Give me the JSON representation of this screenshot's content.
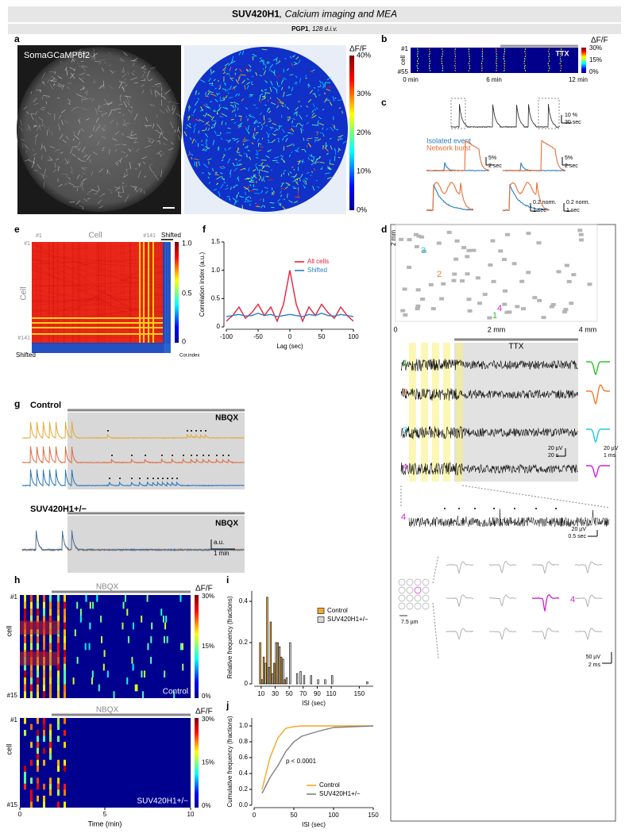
{
  "header": {
    "title_gene": "SUV420H1",
    "title_rest": ", Calcium imaging and MEA",
    "subtitle_line": "PGP1",
    "subtitle_rest": ", 128 d.i.v."
  },
  "panels": {
    "a": {
      "letter": "a",
      "image_label": "SomaGCaMP6f2",
      "colorbar_title": "ΔF/F",
      "colorbar_ticks": [
        "40%",
        "30%",
        "20%",
        "10%",
        "0%"
      ]
    },
    "b": {
      "letter": "b",
      "row_first": "#1",
      "row_axis": "cell",
      "row_last": "#55",
      "time_ticks": [
        "0 min",
        "6 min",
        "12 min"
      ],
      "treatment": "TTX",
      "colorbar_title": "ΔF/F",
      "colorbar_ticks": [
        "30%",
        "15%",
        "0%"
      ]
    },
    "c": {
      "letter": "c",
      "top_scale": [
        "10 %",
        "30 sec"
      ],
      "legend": [
        "Isolated event",
        "Network burst"
      ],
      "scales": [
        "5%",
        "2 sec",
        "5%",
        "2 sec",
        "0.2 norm.",
        "1 sec",
        "0.2 norm.",
        "1 sec"
      ]
    },
    "d": {
      "letter": "d",
      "y_scale": "2 mm",
      "x_ticks": [
        "0",
        "2 mm",
        "4 mm"
      ],
      "electrodes": [
        "1",
        "2",
        "3",
        "4"
      ],
      "treatment": "TTX",
      "channels": [
        "1",
        "2",
        "3",
        "4"
      ],
      "trace_scale": [
        "20 µV",
        "20 s"
      ],
      "spike_scale": [
        "20 µV",
        "1 ms"
      ],
      "zoom_channel": "4",
      "zoom_scale": [
        "20 µV",
        "0.5 sec"
      ],
      "pitch": "7.5 µm",
      "unit_label": "4",
      "unit_scale": [
        "50 µV",
        "2 ms"
      ]
    },
    "e": {
      "letter": "e",
      "col_title": "Cell",
      "col_first": "#1",
      "col_last": "#141",
      "shifted_col": "Shifted",
      "row_title": "Cell",
      "row_first": "#1",
      "row_last": "#141",
      "shifted_row": "Shifted",
      "colorbar_ticks": [
        "1.0",
        "0.5",
        "0"
      ],
      "colorbar_title": "Cor.index"
    },
    "g": {
      "letter": "g",
      "control": "Control",
      "drug": "NBQX",
      "mutant": "SUV420H1+/−",
      "drug2": "NBQX",
      "scale": [
        "a.u.",
        "1 min"
      ]
    },
    "h": {
      "letter": "h",
      "control": {
        "drug": "NBQX",
        "colorbar_title": "ΔF/F",
        "colorbar_ticks": [
          "30%",
          "15%",
          "0%"
        ],
        "row_first": "#1",
        "row_axis": "cell",
        "row_last": "#15",
        "group": "Control"
      },
      "mutant": {
        "drug": "NBQX",
        "colorbar_title": "ΔF/F",
        "colorbar_ticks": [
          "30%",
          "15%",
          "0%"
        ],
        "row_first": "#1",
        "row_axis": "cell",
        "row_last": "#15",
        "group": "SUV420H1+/−"
      },
      "time_ticks": [
        "0",
        "5",
        "10"
      ],
      "time_label": "Time (min)"
    }
  },
  "chart_data": [
    {
      "panel": "f",
      "type": "line",
      "x_label": "Lag (sec)",
      "y_label": "Correlation index (a.u.)",
      "x": [
        -100,
        -90,
        -80,
        -70,
        -60,
        -50,
        -40,
        -30,
        -20,
        -10,
        0,
        10,
        20,
        30,
        40,
        50,
        60,
        70,
        80,
        90,
        100
      ],
      "xlim": [
        -100,
        100
      ],
      "xticks": [
        -100,
        -50,
        0,
        50,
        100
      ],
      "ylim": [
        0,
        1.5
      ],
      "yticks": [
        0,
        0.5,
        {
          "value": 1,
          "label": "1.0"
        },
        1.5
      ],
      "series": [
        {
          "name": "All cells",
          "color": "#e8203a",
          "values": [
            0.1,
            0.2,
            0.35,
            0.15,
            0.25,
            0.4,
            0.2,
            0.35,
            0.1,
            0.4,
            1.0,
            0.4,
            0.1,
            0.35,
            0.2,
            0.4,
            0.25,
            0.15,
            0.35,
            0.2,
            0.1
          ]
        },
        {
          "name": "Shifted",
          "color": "#2a7fc0",
          "values": [
            0.18,
            0.2,
            0.22,
            0.19,
            0.2,
            0.24,
            0.2,
            0.22,
            0.18,
            0.2,
            0.22,
            0.2,
            0.18,
            0.22,
            0.2,
            0.24,
            0.2,
            0.19,
            0.22,
            0.2,
            0.18
          ]
        }
      ],
      "legend": "top-right"
    },
    {
      "panel": "i",
      "type": "bar",
      "x_label": "ISI (sec)",
      "y_label": "Relative frequency (fractions)",
      "x": [
        10,
        15,
        20,
        25,
        30,
        35,
        40,
        45,
        50,
        55,
        60,
        65,
        70,
        80,
        90,
        100,
        110,
        160
      ],
      "xlim": [
        0,
        170
      ],
      "xticks": [
        10,
        30,
        50,
        70,
        90,
        110,
        150
      ],
      "ylim": [
        0,
        0.45
      ],
      "yticks": [
        0,
        0.2,
        0.4
      ],
      "series": [
        {
          "name": "Control",
          "color": "#f0a830",
          "values": [
            0.2,
            0.13,
            0.42,
            0.3,
            0.1,
            0.2,
            0.13,
            0.02,
            0,
            0,
            0,
            0,
            0,
            0,
            0,
            0,
            0,
            0
          ]
        },
        {
          "name": "SUV420H1+/−",
          "color": "#d9d9d9",
          "values": [
            0.02,
            0.1,
            0.08,
            0.05,
            0.2,
            0.18,
            0.12,
            0.03,
            0.2,
            0,
            0.05,
            0.06,
            0.04,
            0.04,
            0.02,
            0.02,
            0.04,
            0.01
          ]
        }
      ],
      "legend": "top-right"
    },
    {
      "panel": "j",
      "type": "line",
      "x_label": "ISI (sec)",
      "y_label": "Cumulative frequency (fractions)",
      "annotation": "p < 0.0001",
      "x": [
        10,
        20,
        30,
        40,
        50,
        60,
        80,
        100,
        150
      ],
      "xlim": [
        0,
        150
      ],
      "xticks": [
        0,
        50,
        100,
        150
      ],
      "ylim": [
        0,
        1.1
      ],
      "yticks": [
        {
          "value": 0,
          "label": "0.0"
        },
        0.2,
        0.4,
        0.6,
        0.8,
        {
          "value": 1,
          "label": "1.0"
        }
      ],
      "series": [
        {
          "name": "Control",
          "color": "#f5a623",
          "values": [
            0.2,
            0.6,
            0.85,
            0.97,
            0.99,
            1,
            1,
            1,
            1
          ]
        },
        {
          "name": "SUV420H1+/−",
          "color": "#808080",
          "values": [
            0.15,
            0.35,
            0.5,
            0.68,
            0.8,
            0.87,
            0.93,
            0.98,
            1
          ]
        }
      ],
      "legend": "bottom-right"
    }
  ]
}
